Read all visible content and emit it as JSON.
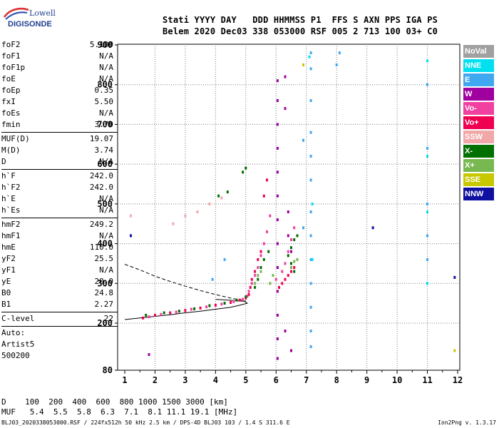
{
  "logo": {
    "line1": "Lowell",
    "line2": "DIGISONDE"
  },
  "header": {
    "line1": "Stati YYYY DAY   DDD HHMMSS P1  FFS S AXN PPS IGA PS",
    "line2": "Belem 2020 Dec03 338 053000 RSF 005 2 713 100 03+ C0"
  },
  "params_group1": [
    {
      "key": "foF2",
      "value": "5.100"
    },
    {
      "key": "foF1",
      "value": "N/A"
    },
    {
      "key": "foF1p",
      "value": "N/A"
    },
    {
      "key": "foE",
      "value": "N/A"
    },
    {
      "key": "foEp",
      "value": "0.35"
    },
    {
      "key": "fxI",
      "value": "5.50"
    },
    {
      "key": "foEs",
      "value": "N/A"
    },
    {
      "key": "fmin",
      "value": "3.70"
    }
  ],
  "params_group2": [
    {
      "key": "MUF(D)",
      "value": "19.07"
    },
    {
      "key": "M(D)",
      "value": "3.74"
    },
    {
      "key": "D",
      "value": "N/A"
    }
  ],
  "params_group3": [
    {
      "key": "h`F",
      "value": "242.0"
    },
    {
      "key": "h`F2",
      "value": "242.0"
    },
    {
      "key": "h`E",
      "value": "N/A"
    },
    {
      "key": "h`Es",
      "value": "N/A"
    }
  ],
  "params_group4": [
    {
      "key": "hmF2",
      "value": "249.2"
    },
    {
      "key": "hmF1",
      "value": "N/A"
    },
    {
      "key": "hmE",
      "value": "110.0"
    },
    {
      "key": "yF2",
      "value": "25.5"
    },
    {
      "key": "yF1",
      "value": "N/A"
    },
    {
      "key": "yE",
      "value": "20.0"
    },
    {
      "key": "B0",
      "value": "24.8"
    },
    {
      "key": "B1",
      "value": "2.27"
    }
  ],
  "clevel": {
    "key": "C-level",
    "value": "22"
  },
  "auto": {
    "line1": "Auto:",
    "line2": "Artist5",
    "line3": "500200"
  },
  "legend": [
    {
      "label": "NoVal",
      "color": "#a0a0a0"
    },
    {
      "label": "NNE",
      "color": "#00e0f0"
    },
    {
      "label": "E",
      "color": "#40a8f0"
    },
    {
      "label": "W",
      "color": "#a000a0"
    },
    {
      "label": "Vo-",
      "color": "#f040a0"
    },
    {
      "label": "Vo+",
      "color": "#f00050"
    },
    {
      "label": "SSW",
      "color": "#f0a8a8"
    },
    {
      "label": "X-",
      "color": "#007000"
    },
    {
      "label": "X+",
      "color": "#78b850"
    },
    {
      "label": "SSE",
      "color": "#c8c800"
    },
    {
      "label": "NNW",
      "color": "#1010a0"
    }
  ],
  "bottom": {
    "dist_line": "D    100  200  400  600  800 1000 1500 3000 [km]",
    "muf_line": "MUF   5.4  5.5  5.8  6.3  7.1  8.1 11.1 19.1 [MHz]"
  },
  "footer": "BLJ03_2020338053000.RSF / 224fx512h 50 kHz 2.5 km / DPS-4D BLJ03 103 / 1.4 S 311.6 E",
  "version": "Ion2Png v. 1.3.17",
  "chart_data": {
    "type": "scatter",
    "xlim": [
      1,
      12
    ],
    "ylim": [
      80,
      900
    ],
    "x_ticks": [
      1,
      2,
      3,
      4,
      5,
      6,
      7,
      8,
      9,
      10,
      11,
      12
    ],
    "y_ticks": [
      80,
      200,
      300,
      400,
      500,
      600,
      700,
      800,
      900
    ],
    "x_unit": "MHz",
    "y_unit": "km",
    "grid": true,
    "legend_position": "right",
    "series": [
      {
        "name": "Vo+",
        "color": "#f00050",
        "points": [
          [
            1.6,
            213
          ],
          [
            2.0,
            220
          ],
          [
            2.5,
            226
          ],
          [
            3.0,
            232
          ],
          [
            3.5,
            238
          ],
          [
            4.0,
            245
          ],
          [
            4.5,
            252
          ],
          [
            4.8,
            258
          ],
          [
            5.0,
            263
          ],
          [
            5.1,
            272
          ],
          [
            5.15,
            290
          ],
          [
            5.2,
            310
          ],
          [
            5.3,
            330
          ],
          [
            5.4,
            360
          ],
          [
            5.5,
            380
          ],
          [
            6.1,
            290
          ],
          [
            6.2,
            300
          ],
          [
            6.3,
            310
          ],
          [
            6.4,
            320
          ],
          [
            6.5,
            330
          ],
          [
            6.6,
            340
          ],
          [
            5.6,
            520
          ],
          [
            5.7,
            560
          ]
        ]
      },
      {
        "name": "Vo-",
        "color": "#f040a0",
        "points": [
          [
            1.8,
            216
          ],
          [
            2.2,
            222
          ],
          [
            2.7,
            228
          ],
          [
            3.2,
            235
          ],
          [
            3.7,
            241
          ],
          [
            4.2,
            248
          ],
          [
            4.6,
            254
          ],
          [
            4.9,
            260
          ],
          [
            5.05,
            268
          ],
          [
            5.1,
            280
          ],
          [
            5.2,
            300
          ],
          [
            5.3,
            320
          ],
          [
            5.4,
            340
          ],
          [
            5.5,
            370
          ],
          [
            5.6,
            400
          ],
          [
            5.7,
            430
          ],
          [
            5.8,
            470
          ],
          [
            6.0,
            310
          ],
          [
            6.2,
            330
          ],
          [
            6.3,
            350
          ],
          [
            6.4,
            380
          ],
          [
            6.5,
            410
          ],
          [
            6.6,
            440
          ]
        ]
      },
      {
        "name": "X-",
        "color": "#007000",
        "points": [
          [
            1.7,
            220
          ],
          [
            2.3,
            226
          ],
          [
            2.8,
            230
          ],
          [
            3.3,
            236
          ],
          [
            3.8,
            244
          ],
          [
            4.3,
            250
          ],
          [
            4.7,
            258
          ],
          [
            5.0,
            266
          ],
          [
            5.3,
            290
          ],
          [
            5.4,
            310
          ],
          [
            5.5,
            340
          ],
          [
            5.6,
            360
          ],
          [
            5.75,
            380
          ],
          [
            6.4,
            370
          ],
          [
            6.5,
            390
          ],
          [
            6.6,
            410
          ],
          [
            6.7,
            420
          ],
          [
            6.5,
            350
          ],
          [
            6.6,
            330
          ],
          [
            4.9,
            580
          ],
          [
            5.0,
            590
          ],
          [
            4.1,
            520
          ],
          [
            4.4,
            530
          ]
        ]
      },
      {
        "name": "X+",
        "color": "#78b850",
        "points": [
          [
            5.3,
            300
          ],
          [
            5.4,
            320
          ],
          [
            5.5,
            330
          ],
          [
            6.5,
            340
          ],
          [
            6.6,
            355
          ],
          [
            6.7,
            360
          ],
          [
            5.8,
            300
          ],
          [
            5.9,
            320
          ]
        ]
      },
      {
        "name": "W",
        "color": "#a000a0",
        "points": [
          [
            6.05,
            810
          ],
          [
            6.05,
            760
          ],
          [
            6.05,
            700
          ],
          [
            6.05,
            640
          ],
          [
            6.05,
            580
          ],
          [
            6.05,
            520
          ],
          [
            6.05,
            460
          ],
          [
            6.05,
            400
          ],
          [
            6.05,
            340
          ],
          [
            6.05,
            280
          ],
          [
            6.05,
            220
          ],
          [
            6.05,
            160
          ],
          [
            6.05,
            110
          ],
          [
            6.3,
            820
          ],
          [
            6.3,
            740
          ],
          [
            6.4,
            480
          ],
          [
            6.4,
            420
          ],
          [
            6.5,
            380
          ],
          [
            6.3,
            180
          ],
          [
            6.5,
            130
          ],
          [
            1.8,
            120
          ]
        ]
      },
      {
        "name": "E",
        "color": "#40a8f0",
        "points": [
          [
            7.15,
            880
          ],
          [
            7.15,
            840
          ],
          [
            7.15,
            760
          ],
          [
            7.15,
            680
          ],
          [
            7.15,
            620
          ],
          [
            7.15,
            560
          ],
          [
            7.15,
            480
          ],
          [
            7.15,
            420
          ],
          [
            7.15,
            360
          ],
          [
            7.15,
            300
          ],
          [
            7.15,
            240
          ],
          [
            7.15,
            180
          ],
          [
            7.15,
            140
          ],
          [
            11.0,
            800
          ],
          [
            11.0,
            640
          ],
          [
            11.0,
            500
          ],
          [
            11.0,
            420
          ],
          [
            11.0,
            360
          ],
          [
            8.1,
            880
          ],
          [
            8.0,
            850
          ],
          [
            6.9,
            660
          ],
          [
            6.9,
            440
          ],
          [
            4.3,
            360
          ],
          [
            3.9,
            310
          ]
        ]
      },
      {
        "name": "NNE",
        "color": "#00e0f0",
        "points": [
          [
            7.1,
            870
          ],
          [
            11.0,
            860
          ],
          [
            11.0,
            620
          ],
          [
            11.0,
            480
          ],
          [
            11.0,
            300
          ],
          [
            7.2,
            500
          ],
          [
            7.2,
            360
          ]
        ]
      },
      {
        "name": "NNW",
        "color": "#1010a0",
        "points": [
          [
            11.9,
            315
          ],
          [
            1.2,
            420
          ],
          [
            9.2,
            440
          ]
        ]
      },
      {
        "name": "SSE",
        "color": "#c8c800",
        "points": [
          [
            11.9,
            130
          ],
          [
            6.9,
            850
          ]
        ]
      },
      {
        "name": "SSW",
        "color": "#f0a8a8",
        "points": [
          [
            1.2,
            470
          ],
          [
            2.6,
            450
          ],
          [
            3.0,
            470
          ],
          [
            3.4,
            480
          ],
          [
            3.8,
            500
          ],
          [
            4.2,
            515
          ]
        ]
      }
    ],
    "curves": [
      {
        "name": "solid",
        "points": [
          [
            1.0,
            209
          ],
          [
            1.5,
            213
          ],
          [
            2.0,
            217
          ],
          [
            2.5,
            221
          ],
          [
            3.0,
            226
          ],
          [
            3.5,
            230
          ],
          [
            4.0,
            235
          ],
          [
            4.5,
            240
          ],
          [
            4.85,
            246
          ],
          [
            5.05,
            250
          ],
          [
            4.95,
            255
          ],
          [
            4.6,
            257
          ],
          [
            4.0,
            260
          ]
        ]
      },
      {
        "name": "dashed",
        "points": [
          [
            1.0,
            348
          ],
          [
            1.5,
            334
          ],
          [
            2.0,
            318
          ],
          [
            2.5,
            305
          ],
          [
            3.0,
            293
          ],
          [
            3.5,
            282
          ],
          [
            4.0,
            272
          ],
          [
            4.5,
            263
          ],
          [
            5.0,
            256
          ]
        ]
      }
    ]
  }
}
